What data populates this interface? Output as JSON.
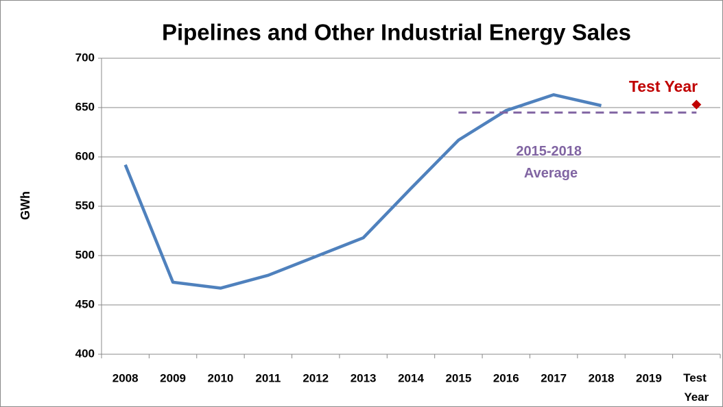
{
  "chart_data": {
    "type": "line",
    "title": "Pipelines and Other Industrial Energy Sales",
    "ylabel": "GWh",
    "categories": [
      "2008",
      "2009",
      "2010",
      "2011",
      "2012",
      "2013",
      "2014",
      "2015",
      "2016",
      "2017",
      "2018",
      "2019",
      "Test Year"
    ],
    "series": [
      {
        "color": "#4f81bd",
        "values": [
          592,
          473,
          467,
          480,
          499,
          518,
          568,
          617,
          647,
          663,
          652,
          null,
          null
        ]
      },
      {
        "color": "#8064a2",
        "dashed": true,
        "values": [
          null,
          null,
          null,
          null,
          null,
          null,
          null,
          645,
          645,
          645,
          645,
          645,
          645
        ]
      },
      {
        "color": "#c00000",
        "marker": "diamond",
        "values": [
          null,
          null,
          null,
          null,
          null,
          null,
          null,
          null,
          null,
          null,
          null,
          null,
          653
        ]
      }
    ],
    "annotations": [
      {
        "text": "Test Year",
        "color": "#c00000"
      },
      {
        "text": "2015-2018 Average",
        "color": "#8064a2"
      }
    ],
    "ylim": [
      400,
      700
    ],
    "yticks": [
      400,
      450,
      500,
      550,
      600,
      650,
      700
    ],
    "grid": true
  }
}
